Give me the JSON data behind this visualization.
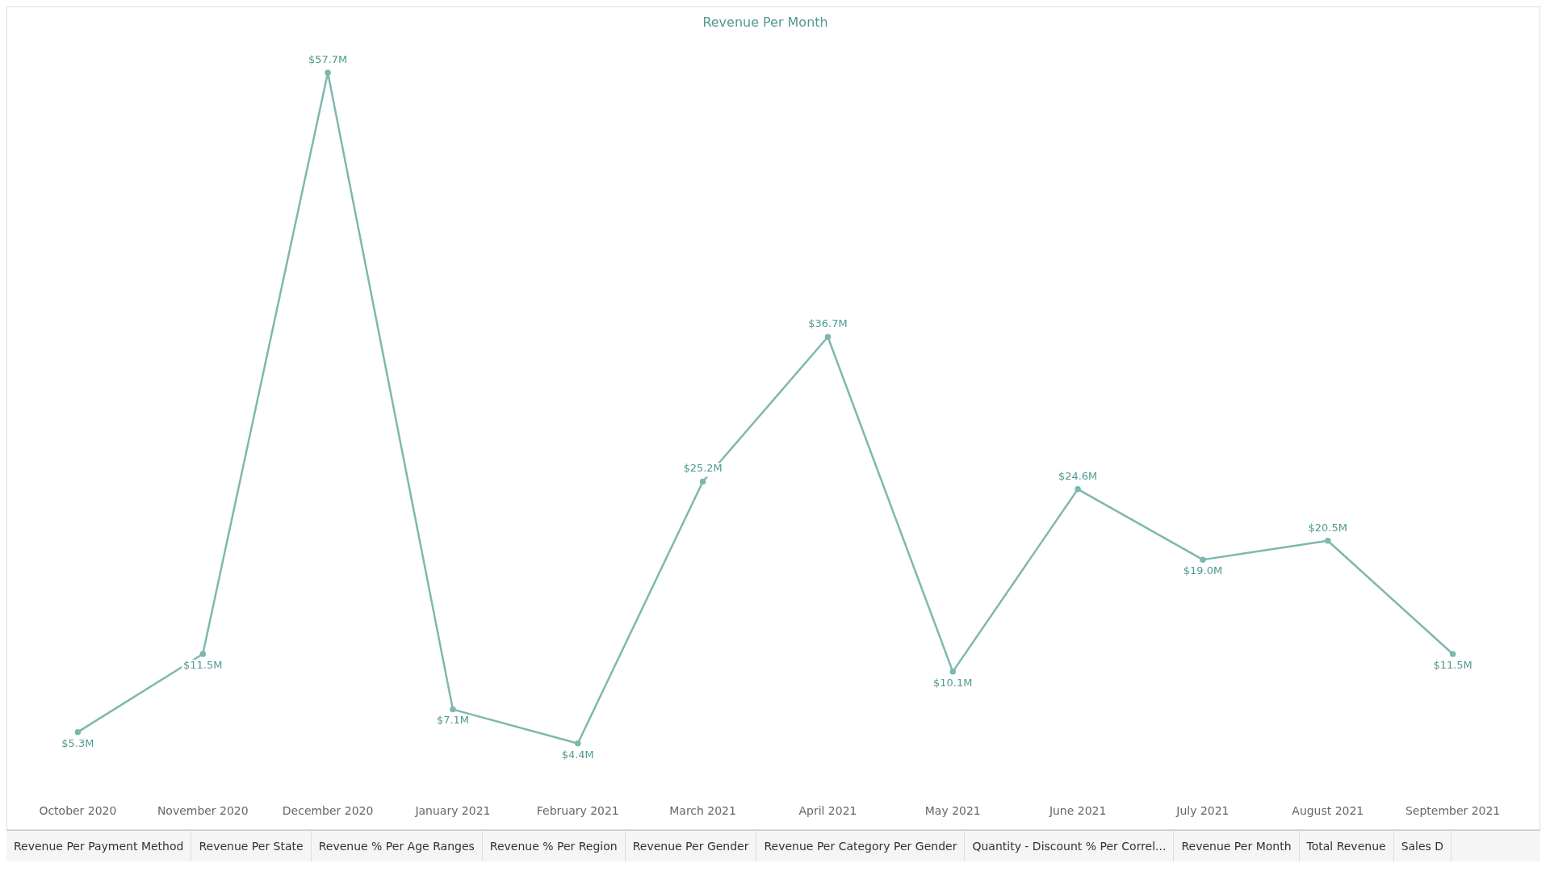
{
  "chart_data": {
    "type": "line",
    "title": "Revenue Per Month",
    "categories": [
      "October 2020",
      "November 2020",
      "December 2020",
      "January 2021",
      "February 2021",
      "March 2021",
      "April 2021",
      "May 2021",
      "June 2021",
      "July 2021",
      "August 2021",
      "September 2021"
    ],
    "series": [
      {
        "color": "#7db8ae",
        "values": [
          5.3,
          11.5,
          57.7,
          7.1,
          4.4,
          25.2,
          36.7,
          10.1,
          24.6,
          19.0,
          20.5,
          11.5
        ],
        "value_labels": [
          "$5.3M",
          "$11.5M",
          "$57.7M",
          "$7.1M",
          "$4.4M",
          "$25.2M",
          "$36.7M",
          "$10.1M",
          "$24.6M",
          "$19.0M",
          "$20.5M",
          "$11.5M"
        ]
      }
    ],
    "marker": "circle",
    "line_style": "solid",
    "legend": false,
    "tick_labels": "x",
    "annotations": [
      "Revenue Per Payment Method",
      "Revenue Per State",
      "Revenue % Per Age Ranges",
      "Revenue % Per Region",
      "Revenue Per Gender",
      "Revenue Per Category Per Gender",
      "Quantity - Discount % Per Correl...",
      "Revenue Per Month",
      "Total Revenue",
      "Sales D"
    ]
  }
}
